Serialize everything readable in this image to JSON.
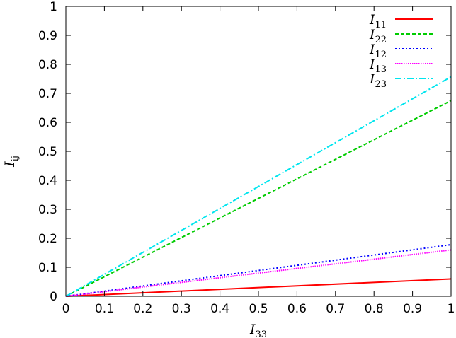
{
  "chart_data": {
    "type": "line",
    "xlabel": {
      "base": "I",
      "sub": "33"
    },
    "ylabel": {
      "base": "I",
      "sub": "ij"
    },
    "xlim": [
      0,
      1
    ],
    "ylim": [
      0,
      1
    ],
    "x_ticks": [
      0,
      0.1,
      0.2,
      0.3,
      0.4,
      0.5,
      0.6,
      0.7,
      0.8,
      0.9,
      1
    ],
    "x_tick_labels": [
      "0",
      "0.1",
      "0.2",
      "0.3",
      "0.4",
      "0.5",
      "0.6",
      "0.7",
      "0.8",
      "0.9",
      "1"
    ],
    "y_ticks": [
      0,
      0.1,
      0.2,
      0.3,
      0.4,
      0.5,
      0.6,
      0.7,
      0.8,
      0.9,
      1
    ],
    "y_tick_labels": [
      "0",
      "0.1",
      "0.2",
      "0.3",
      "0.4",
      "0.5",
      "0.6",
      "0.7",
      "0.8",
      "0.9",
      "1"
    ],
    "grid": false,
    "legend_position": "top-right",
    "series": [
      {
        "name": "I",
        "sub": "11",
        "color": "#ff0000",
        "dash": "solid",
        "x": [
          0,
          1
        ],
        "y": [
          0,
          0.06
        ]
      },
      {
        "name": "I",
        "sub": "22",
        "color": "#00cc00",
        "dash": "dashed",
        "x": [
          0,
          1
        ],
        "y": [
          0,
          0.675
        ]
      },
      {
        "name": "I",
        "sub": "12",
        "color": "#0000ff",
        "dash": "dotted",
        "x": [
          0,
          1
        ],
        "y": [
          0,
          0.178
        ]
      },
      {
        "name": "I",
        "sub": "13",
        "color": "#ff00ff",
        "dash": "dense-dotted",
        "x": [
          0,
          1
        ],
        "y": [
          0,
          0.16
        ]
      },
      {
        "name": "I",
        "sub": "23",
        "color": "#00e5ee",
        "dash": "dash-dot",
        "x": [
          0,
          1
        ],
        "y": [
          0,
          0.757
        ]
      }
    ]
  }
}
